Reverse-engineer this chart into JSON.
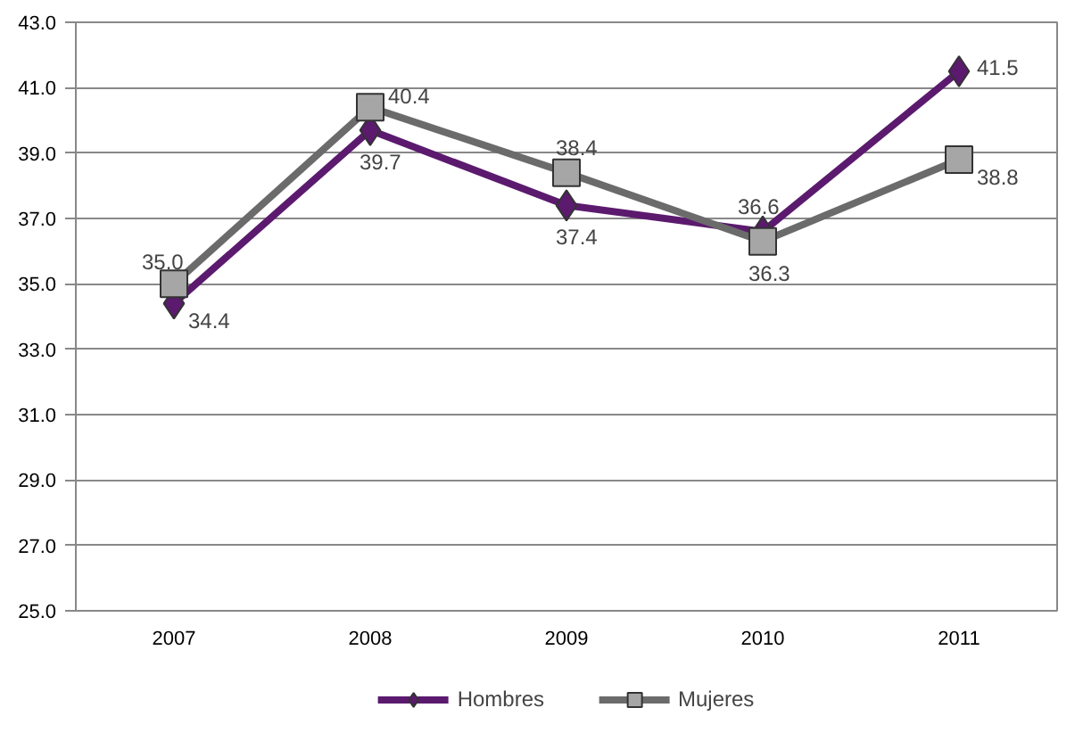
{
  "chart_data": {
    "type": "line",
    "categories": [
      "2007",
      "2008",
      "2009",
      "2010",
      "2011"
    ],
    "series": [
      {
        "name": "Hombres",
        "color": "#5b1a6e",
        "marker": "diamond",
        "values": [
          34.4,
          39.7,
          37.4,
          36.6,
          41.5
        ],
        "value_labels": [
          "34.4",
          "39.7",
          "37.4",
          "36.6",
          "41.5"
        ]
      },
      {
        "name": "Mujeres",
        "color": "#6b6b6b",
        "marker": "square",
        "values": [
          35.0,
          40.4,
          38.4,
          36.3,
          38.8
        ],
        "value_labels": [
          "35.0",
          "40.4",
          "38.4",
          "36.3",
          "38.8"
        ]
      }
    ],
    "ylim": [
      25,
      43
    ],
    "yticks": [
      {
        "value": 25,
        "label": "25.0"
      },
      {
        "value": 27,
        "label": "27.0"
      },
      {
        "value": 29,
        "label": "29.0"
      },
      {
        "value": 31,
        "label": "31.0"
      },
      {
        "value": 33,
        "label": "33.0"
      },
      {
        "value": 35,
        "label": "35.0"
      },
      {
        "value": 37,
        "label": "37.0"
      },
      {
        "value": 39,
        "label": "39.0"
      },
      {
        "value": 41,
        "label": "41.0"
      },
      {
        "value": 43,
        "label": "43.0"
      }
    ],
    "grid": "y",
    "legend": "bottom",
    "line_style": "solid"
  }
}
